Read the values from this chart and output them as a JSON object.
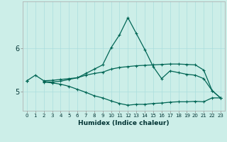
{
  "xlabel": "Humidex (Indice chaleur)",
  "background_color": "#cceee8",
  "grid_color": "#aadddd",
  "line_color": "#006655",
  "x": [
    0,
    1,
    2,
    3,
    4,
    5,
    6,
    7,
    8,
    9,
    10,
    11,
    12,
    13,
    14,
    15,
    16,
    17,
    18,
    19,
    20,
    21,
    22,
    23
  ],
  "line1": [
    5.25,
    5.38,
    5.25,
    5.26,
    5.28,
    5.3,
    5.32,
    5.38,
    5.42,
    5.45,
    5.52,
    5.56,
    5.58,
    5.6,
    5.61,
    5.62,
    5.63,
    5.64,
    5.64,
    5.63,
    5.62,
    5.5,
    5.02,
    4.85
  ],
  "line2": [
    5.25,
    null,
    5.23,
    5.22,
    5.24,
    5.28,
    5.32,
    5.42,
    5.52,
    5.62,
    6.02,
    6.32,
    6.72,
    6.35,
    5.98,
    5.58,
    5.3,
    5.48,
    5.44,
    5.4,
    5.38,
    5.3,
    5.02,
    4.85
  ],
  "line3": [
    5.25,
    null,
    5.22,
    5.2,
    5.17,
    5.12,
    5.05,
    4.98,
    4.9,
    4.85,
    4.78,
    4.72,
    4.68,
    4.7,
    4.7,
    4.72,
    4.73,
    4.75,
    4.76,
    4.76,
    4.77,
    4.76,
    4.85,
    4.85
  ],
  "ylim": [
    4.55,
    7.1
  ],
  "xlim": [
    -0.5,
    23.5
  ],
  "yticks": [
    5,
    6
  ],
  "xticks": [
    0,
    1,
    2,
    3,
    4,
    5,
    6,
    7,
    8,
    9,
    10,
    11,
    12,
    13,
    14,
    15,
    16,
    17,
    18,
    19,
    20,
    21,
    22,
    23
  ]
}
